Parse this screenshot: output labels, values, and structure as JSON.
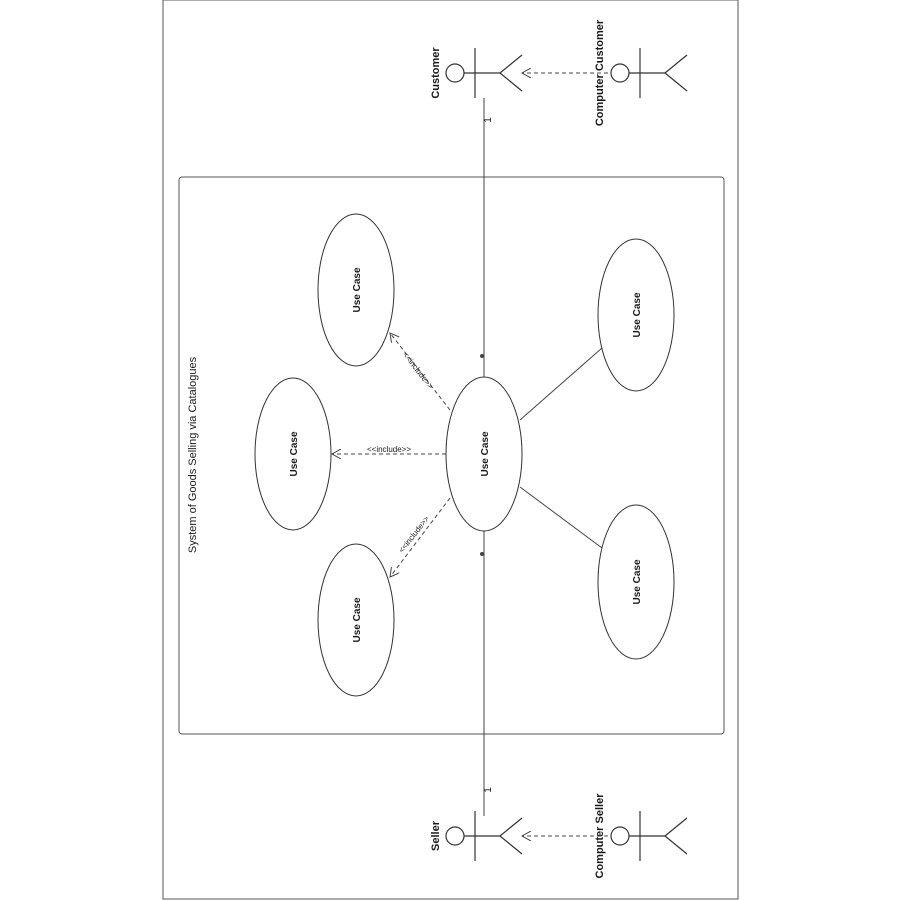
{
  "diagram": {
    "title": "System of Goods Selling via Catalogues",
    "actors": {
      "customer": "Customer",
      "computer_customer": "Computer Customer",
      "seller": "Seller",
      "computer_seller": "Computer Seller"
    },
    "use_case_label": "Use Case",
    "multiplicity_customer": "1",
    "multiplicity_seller": "1",
    "relation_labels": {
      "include_left": "<<include>>",
      "include_upper": "<<include>>",
      "include_lower": "<<include>>"
    }
  },
  "colors": {
    "stroke": "#333333",
    "background": "#ffffff"
  }
}
